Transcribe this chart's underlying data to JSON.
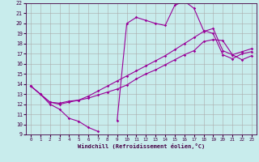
{
  "xlabel": "Windchill (Refroidissement éolien,°C)",
  "xlim": [
    -0.5,
    23.5
  ],
  "ylim": [
    9,
    22
  ],
  "xticks": [
    0,
    1,
    2,
    3,
    4,
    5,
    6,
    7,
    8,
    9,
    10,
    11,
    12,
    13,
    14,
    15,
    16,
    17,
    18,
    19,
    20,
    21,
    22,
    23
  ],
  "yticks": [
    9,
    10,
    11,
    12,
    13,
    14,
    15,
    16,
    17,
    18,
    19,
    20,
    21,
    22
  ],
  "bg_color": "#c8ecec",
  "line_color": "#990099",
  "curve1_x": [
    0,
    1,
    2,
    3,
    4,
    5,
    6,
    7,
    8,
    9,
    10,
    11,
    12,
    13,
    14,
    15,
    16,
    17,
    18,
    19,
    20,
    21,
    22,
    23
  ],
  "curve1_y": [
    13.8,
    13.0,
    12.0,
    11.5,
    10.6,
    10.3,
    9.7,
    9.3,
    null,
    10.4,
    20.0,
    20.6,
    20.3,
    20.0,
    19.8,
    21.8,
    22.2,
    21.5,
    19.3,
    19.0,
    16.9,
    16.5,
    17.0,
    17.2
  ],
  "curve2_x": [
    0,
    1,
    2,
    3,
    4,
    5,
    6,
    7,
    8,
    9,
    10,
    11,
    12,
    13,
    14,
    15,
    16,
    17,
    18,
    19,
    20,
    21,
    22,
    23
  ],
  "curve2_y": [
    13.8,
    13.0,
    12.2,
    12.1,
    12.3,
    12.4,
    12.6,
    12.9,
    13.2,
    13.5,
    13.9,
    14.5,
    15.0,
    15.4,
    15.9,
    16.4,
    16.9,
    17.3,
    18.2,
    18.4,
    18.3,
    16.9,
    16.4,
    16.8
  ],
  "curve3_x": [
    0,
    1,
    2,
    3,
    4,
    5,
    6,
    7,
    8,
    9,
    10,
    11,
    12,
    13,
    14,
    15,
    16,
    17,
    18,
    19,
    20,
    21,
    22,
    23
  ],
  "curve3_y": [
    13.8,
    13.0,
    12.2,
    12.0,
    12.2,
    12.4,
    12.8,
    13.3,
    13.8,
    14.3,
    14.8,
    15.3,
    15.8,
    16.3,
    16.8,
    17.4,
    18.0,
    18.6,
    19.2,
    19.5,
    17.3,
    16.9,
    17.2,
    17.5
  ]
}
